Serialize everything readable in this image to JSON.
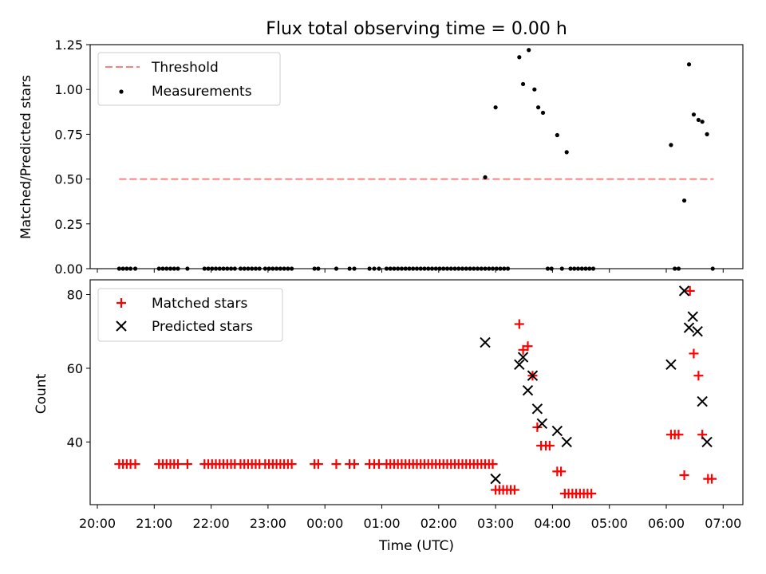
{
  "figure_title": "Flux total observing time = 0.00 h",
  "x_axis_label": "Time (UTC)",
  "x_tick_labels": [
    "20:00",
    "21:00",
    "22:00",
    "23:00",
    "00:00",
    "01:00",
    "02:00",
    "03:00",
    "04:00",
    "05:00",
    "06:00",
    "07:00"
  ],
  "chart_data": [
    {
      "type": "scatter",
      "title": "Flux total observing time = 0.00 h",
      "xlabel": "",
      "ylabel": "Matched/Predicted stars",
      "xlim": [
        "20:00",
        "07:20"
      ],
      "ylim": [
        0,
        1.25
      ],
      "y_ticks": [
        "0.00",
        "0.25",
        "0.50",
        "0.75",
        "1.00",
        "1.25"
      ],
      "legend_position": "top-left",
      "series": [
        {
          "name": "Threshold",
          "kind": "dashed-line",
          "color": "#ff7f7f",
          "x": [
            "20:23",
            "06:50"
          ],
          "y": [
            0.5,
            0.5
          ]
        },
        {
          "name": "Measurements",
          "kind": "dot",
          "color": "#000000",
          "points": [
            [
              "20:23",
              0
            ],
            [
              "20:27",
              0
            ],
            [
              "20:31",
              0
            ],
            [
              "20:35",
              0
            ],
            [
              "20:40",
              0
            ],
            [
              "21:05",
              0
            ],
            [
              "21:09",
              0
            ],
            [
              "21:13",
              0
            ],
            [
              "21:17",
              0
            ],
            [
              "21:21",
              0
            ],
            [
              "21:25",
              0
            ],
            [
              "21:35",
              0
            ],
            [
              "21:53",
              0
            ],
            [
              "21:57",
              0
            ],
            [
              "22:01",
              0
            ],
            [
              "22:05",
              0
            ],
            [
              "22:09",
              0
            ],
            [
              "22:13",
              0
            ],
            [
              "22:17",
              0
            ],
            [
              "22:21",
              0
            ],
            [
              "22:25",
              0
            ],
            [
              "22:31",
              0
            ],
            [
              "22:35",
              0
            ],
            [
              "22:39",
              0
            ],
            [
              "22:43",
              0
            ],
            [
              "22:47",
              0
            ],
            [
              "22:51",
              0
            ],
            [
              "22:57",
              0
            ],
            [
              "23:01",
              0
            ],
            [
              "23:05",
              0
            ],
            [
              "23:09",
              0
            ],
            [
              "23:13",
              0
            ],
            [
              "23:17",
              0
            ],
            [
              "23:21",
              0
            ],
            [
              "23:25",
              0
            ],
            [
              "23:49",
              0
            ],
            [
              "23:53",
              0
            ],
            [
              "00:12",
              0
            ],
            [
              "00:26",
              0
            ],
            [
              "00:31",
              0
            ],
            [
              "00:47",
              0
            ],
            [
              "00:52",
              0
            ],
            [
              "00:57",
              0
            ],
            [
              "01:05",
              0
            ],
            [
              "01:09",
              0
            ],
            [
              "01:13",
              0
            ],
            [
              "01:17",
              0
            ],
            [
              "01:21",
              0
            ],
            [
              "01:25",
              0
            ],
            [
              "01:29",
              0
            ],
            [
              "01:33",
              0
            ],
            [
              "01:37",
              0
            ],
            [
              "01:41",
              0
            ],
            [
              "01:45",
              0
            ],
            [
              "01:49",
              0
            ],
            [
              "01:53",
              0
            ],
            [
              "01:57",
              0
            ],
            [
              "02:01",
              0
            ],
            [
              "02:05",
              0
            ],
            [
              "02:09",
              0
            ],
            [
              "02:13",
              0
            ],
            [
              "02:17",
              0
            ],
            [
              "02:21",
              0
            ],
            [
              "02:25",
              0
            ],
            [
              "02:29",
              0
            ],
            [
              "02:33",
              0
            ],
            [
              "02:37",
              0
            ],
            [
              "02:41",
              0
            ],
            [
              "02:45",
              0
            ],
            [
              "02:49",
              0
            ],
            [
              "02:53",
              0
            ],
            [
              "02:57",
              0
            ],
            [
              "03:01",
              0
            ],
            [
              "03:05",
              0
            ],
            [
              "03:09",
              0
            ],
            [
              "03:13",
              0
            ],
            [
              "03:55",
              0
            ],
            [
              "03:59",
              0
            ],
            [
              "04:10",
              0
            ],
            [
              "04:19",
              0
            ],
            [
              "04:23",
              0
            ],
            [
              "04:27",
              0
            ],
            [
              "04:31",
              0
            ],
            [
              "04:35",
              0
            ],
            [
              "04:39",
              0
            ],
            [
              "04:43",
              0
            ],
            [
              "06:09",
              0
            ],
            [
              "06:13",
              0
            ],
            [
              "06:49",
              0
            ],
            [
              "02:49",
              0.51
            ],
            [
              "03:00",
              0.9
            ],
            [
              "03:25",
              1.18
            ],
            [
              "03:29",
              1.03
            ],
            [
              "03:35",
              1.22
            ],
            [
              "03:41",
              1.0
            ],
            [
              "03:45",
              0.9
            ],
            [
              "03:50",
              0.87
            ],
            [
              "04:05",
              0.745
            ],
            [
              "04:15",
              0.65
            ],
            [
              "06:05",
              0.69
            ],
            [
              "06:19",
              0.38
            ],
            [
              "06:24",
              1.14
            ],
            [
              "06:29",
              0.86
            ],
            [
              "06:34",
              0.83
            ],
            [
              "06:38",
              0.82
            ],
            [
              "06:43",
              0.75
            ]
          ]
        }
      ]
    },
    {
      "type": "scatter",
      "title": "",
      "xlabel": "Time (UTC)",
      "ylabel": "Count",
      "xlim": [
        "20:00",
        "07:20"
      ],
      "ylim": [
        23,
        84
      ],
      "y_ticks": [
        "40",
        "60",
        "80"
      ],
      "legend_position": "top-left",
      "series": [
        {
          "name": "Matched stars",
          "marker": "+",
          "color": "#ff0000",
          "points": [
            [
              "20:23",
              34
            ],
            [
              "20:27",
              34
            ],
            [
              "20:31",
              34
            ],
            [
              "20:35",
              34
            ],
            [
              "20:40",
              34
            ],
            [
              "21:05",
              34
            ],
            [
              "21:09",
              34
            ],
            [
              "21:13",
              34
            ],
            [
              "21:17",
              34
            ],
            [
              "21:21",
              34
            ],
            [
              "21:25",
              34
            ],
            [
              "21:35",
              34
            ],
            [
              "21:53",
              34
            ],
            [
              "21:57",
              34
            ],
            [
              "22:01",
              34
            ],
            [
              "22:05",
              34
            ],
            [
              "22:09",
              34
            ],
            [
              "22:13",
              34
            ],
            [
              "22:17",
              34
            ],
            [
              "22:21",
              34
            ],
            [
              "22:25",
              34
            ],
            [
              "22:31",
              34
            ],
            [
              "22:35",
              34
            ],
            [
              "22:39",
              34
            ],
            [
              "22:43",
              34
            ],
            [
              "22:47",
              34
            ],
            [
              "22:51",
              34
            ],
            [
              "22:57",
              34
            ],
            [
              "23:01",
              34
            ],
            [
              "23:05",
              34
            ],
            [
              "23:09",
              34
            ],
            [
              "23:13",
              34
            ],
            [
              "23:17",
              34
            ],
            [
              "23:21",
              34
            ],
            [
              "23:25",
              34
            ],
            [
              "23:49",
              34
            ],
            [
              "23:53",
              34
            ],
            [
              "00:12",
              34
            ],
            [
              "00:26",
              34
            ],
            [
              "00:31",
              34
            ],
            [
              "00:47",
              34
            ],
            [
              "00:52",
              34
            ],
            [
              "00:57",
              34
            ],
            [
              "01:05",
              34
            ],
            [
              "01:09",
              34
            ],
            [
              "01:13",
              34
            ],
            [
              "01:17",
              34
            ],
            [
              "01:21",
              34
            ],
            [
              "01:25",
              34
            ],
            [
              "01:29",
              34
            ],
            [
              "01:33",
              34
            ],
            [
              "01:37",
              34
            ],
            [
              "01:41",
              34
            ],
            [
              "01:45",
              34
            ],
            [
              "01:49",
              34
            ],
            [
              "01:53",
              34
            ],
            [
              "01:57",
              34
            ],
            [
              "02:01",
              34
            ],
            [
              "02:05",
              34
            ],
            [
              "02:09",
              34
            ],
            [
              "02:13",
              34
            ],
            [
              "02:17",
              34
            ],
            [
              "02:21",
              34
            ],
            [
              "02:25",
              34
            ],
            [
              "02:29",
              34
            ],
            [
              "02:33",
              34
            ],
            [
              "02:37",
              34
            ],
            [
              "02:41",
              34
            ],
            [
              "02:45",
              34
            ],
            [
              "02:49",
              34
            ],
            [
              "02:53",
              34
            ],
            [
              "02:57",
              34
            ],
            [
              "03:00",
              27
            ],
            [
              "03:04",
              27
            ],
            [
              "03:08",
              27
            ],
            [
              "03:12",
              27
            ],
            [
              "03:16",
              27
            ],
            [
              "03:20",
              27
            ],
            [
              "03:25",
              72
            ],
            [
              "03:29",
              65
            ],
            [
              "03:34",
              66
            ],
            [
              "03:39",
              58
            ],
            [
              "03:44",
              44
            ],
            [
              "03:48",
              39
            ],
            [
              "03:53",
              39
            ],
            [
              "03:57",
              39
            ],
            [
              "04:05",
              32
            ],
            [
              "04:09",
              32
            ],
            [
              "04:13",
              26
            ],
            [
              "04:17",
              26
            ],
            [
              "04:21",
              26
            ],
            [
              "04:25",
              26
            ],
            [
              "04:29",
              26
            ],
            [
              "04:33",
              26
            ],
            [
              "04:37",
              26
            ],
            [
              "04:41",
              26
            ],
            [
              "06:05",
              42
            ],
            [
              "06:09",
              42
            ],
            [
              "06:13",
              42
            ],
            [
              "06:19",
              31
            ],
            [
              "06:25",
              81
            ],
            [
              "06:29",
              64
            ],
            [
              "06:34",
              58
            ],
            [
              "06:38",
              42
            ],
            [
              "06:44",
              30
            ],
            [
              "06:48",
              30
            ]
          ]
        },
        {
          "name": "Predicted stars",
          "marker": "x",
          "color": "#000000",
          "points": [
            [
              "02:49",
              67
            ],
            [
              "03:00",
              30
            ],
            [
              "03:25",
              61
            ],
            [
              "03:29",
              63
            ],
            [
              "03:34",
              54
            ],
            [
              "03:39",
              58
            ],
            [
              "03:44",
              49
            ],
            [
              "03:49",
              45
            ],
            [
              "04:05",
              43
            ],
            [
              "04:15",
              40
            ],
            [
              "06:05",
              61
            ],
            [
              "06:19",
              81
            ],
            [
              "06:24",
              71
            ],
            [
              "06:28",
              74
            ],
            [
              "06:33",
              70
            ],
            [
              "06:38",
              51
            ],
            [
              "06:43",
              40
            ]
          ]
        }
      ]
    }
  ]
}
